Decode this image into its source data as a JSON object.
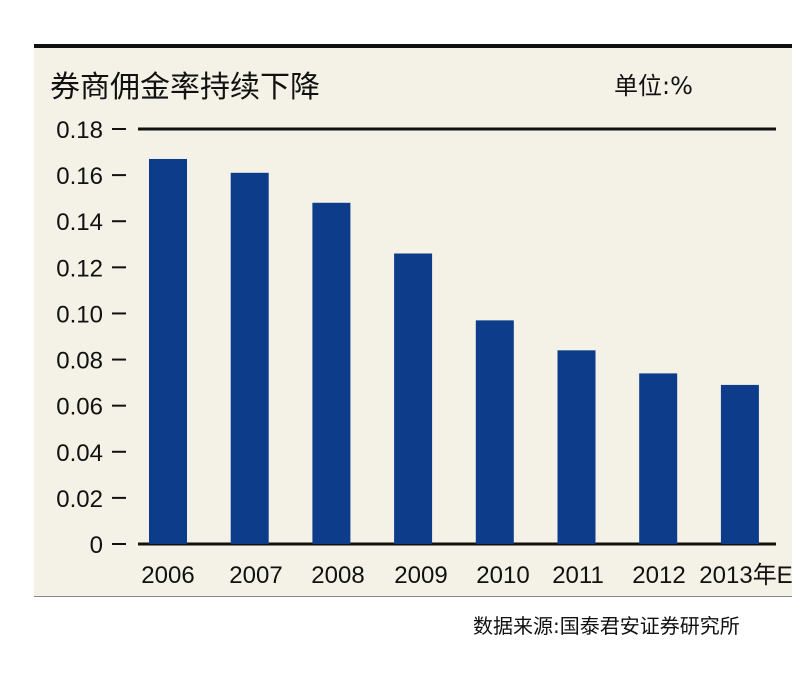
{
  "chart_data": {
    "type": "bar",
    "title": "券商佣金率持续下降",
    "unit_label": "单位:%",
    "source": "数据来源:国泰君安证券研究所",
    "categories": [
      "2006",
      "2007",
      "2008",
      "2009",
      "2010",
      "2011",
      "2012",
      "2013年E"
    ],
    "values": [
      0.167,
      0.161,
      0.148,
      0.126,
      0.097,
      0.084,
      0.074,
      0.069
    ],
    "ylim": [
      0,
      0.18
    ],
    "yticks": [
      "0",
      "0.02",
      "0.04",
      "0.06",
      "0.08",
      "0.10",
      "0.12",
      "0.14",
      "0.16",
      "0.18"
    ],
    "bar_color": "#0d3d8a",
    "background_color": "#f4f2e7",
    "grid": false
  }
}
